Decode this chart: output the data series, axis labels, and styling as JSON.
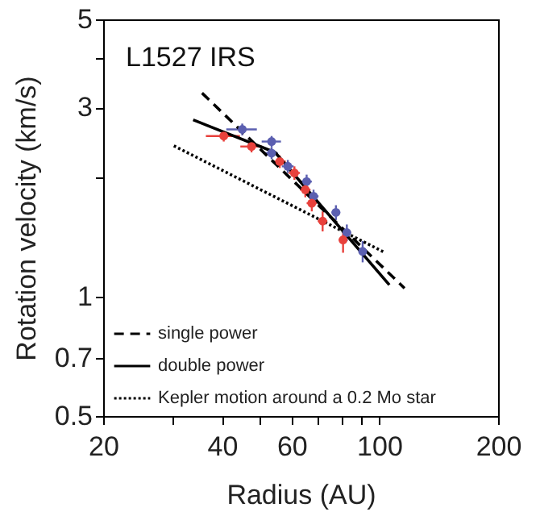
{
  "chart_data": {
    "type": "scatter",
    "xlabel": "Radius (AU)",
    "ylabel": "Rotation velocity (km/s)",
    "annotations": [
      "L1527 IRS"
    ],
    "log": "xy",
    "xlim": [
      20,
      200
    ],
    "ylim": [
      0.5,
      5
    ],
    "xticks": [
      20,
      {
        "value": 30,
        "label": null
      },
      40,
      {
        "value": 50,
        "label": null
      },
      60,
      {
        "value": 70,
        "label": null
      },
      {
        "value": 80,
        "label": null
      },
      {
        "value": 90,
        "label": null
      },
      100,
      200
    ],
    "yticks": [
      0.5,
      0.7,
      1,
      {
        "value": 2,
        "label": null
      },
      3,
      {
        "value": 4,
        "label": null
      },
      5
    ],
    "grid": false,
    "legend": "bottom left",
    "series": [
      {
        "color": "#5b5fb0",
        "marker": "circle",
        "x": [
          45.0,
          53.4,
          53.4,
          58.7,
          65.5,
          68.2,
          77.7,
          82.8,
          90.8
        ],
        "values": [
          2.64,
          2.46,
          2.3,
          2.13,
          1.95,
          1.79,
          1.63,
          1.45,
          1.3
        ],
        "xerrors": [
          4,
          3,
          2,
          2,
          2,
          2,
          2,
          2,
          2
        ],
        "errors": [
          0.09,
          0.08,
          0.08,
          0.08,
          0.08,
          0.07,
          0.07,
          0.07,
          0.08
        ]
      },
      {
        "color": "#e8413c",
        "marker": "circle",
        "x": [
          40.4,
          47.5,
          56.0,
          61.0,
          65.0,
          67.5,
          71.9,
          81.0
        ],
        "values": [
          2.54,
          2.39,
          2.19,
          2.05,
          1.86,
          1.72,
          1.55,
          1.39
        ],
        "xerrors": [
          4,
          3,
          2,
          2,
          2,
          2,
          2,
          2
        ],
        "errors": [
          0.08,
          0.08,
          0.08,
          0.08,
          0.08,
          0.08,
          0.09,
          0.1
        ]
      },
      {
        "type": "line",
        "name": "single power",
        "color": "#000000",
        "line_style": "dashed",
        "x": [
          35.6,
          115.9
        ],
        "values": [
          3.26,
          1.05
        ]
      },
      {
        "type": "line",
        "name": "double power",
        "color": "#000000",
        "line_style": "solid",
        "x": [
          33.8,
          54.5,
          106.1
        ],
        "values": [
          2.79,
          2.31,
          1.07
        ]
      },
      {
        "type": "line",
        "name": "Kepler motion around a 0.2 Mo star",
        "color": "#000000",
        "line_style": "dotted",
        "x": [
          30.2,
          103.6
        ],
        "values": [
          2.4,
          1.29
        ]
      }
    ]
  }
}
